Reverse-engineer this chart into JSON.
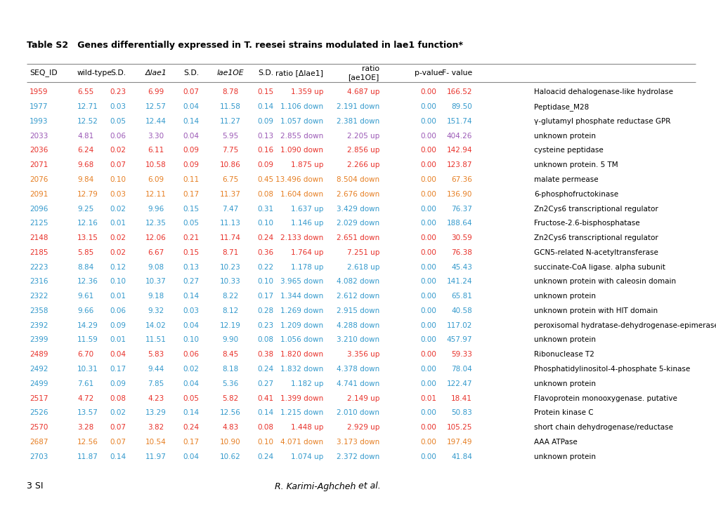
{
  "title": "Table S2   Genes differentially expressed in T. reesei strains modulated in lae1 function*",
  "footer_left": "3 SI",
  "footer_right": "R. Karimi-Aghcheh et al.",
  "rows": [
    {
      "seq": "1959",
      "wt": "6.55",
      "sd1": "0.23",
      "dlae": "6.99",
      "sd2": "0.07",
      "laeoe": "8.78",
      "sd3": "0.15",
      "ratio_d": "1.359 up",
      "ratio_o": "4.687 up",
      "pval": "0.00",
      "fval": "166.52",
      "desc": "Haloacid dehalogenase-like hydrolase",
      "color": "red"
    },
    {
      "seq": "1977",
      "wt": "12.71",
      "sd1": "0.03",
      "dlae": "12.57",
      "sd2": "0.04",
      "laeoe": "11.58",
      "sd3": "0.14",
      "ratio_d": "1.106 down",
      "ratio_o": "2.191 down",
      "pval": "0.00",
      "fval": "89.50",
      "desc": "Peptidase_M28",
      "color": "blue"
    },
    {
      "seq": "1993",
      "wt": "12.52",
      "sd1": "0.05",
      "dlae": "12.44",
      "sd2": "0.14",
      "laeoe": "11.27",
      "sd3": "0.09",
      "ratio_d": "1.057 down",
      "ratio_o": "2.381 down",
      "pval": "0.00",
      "fval": "151.74",
      "desc": "γ-glutamyl phosphate reductase GPR",
      "color": "blue"
    },
    {
      "seq": "2033",
      "wt": "4.81",
      "sd1": "0.06",
      "dlae": "3.30",
      "sd2": "0.04",
      "laeoe": "5.95",
      "sd3": "0.13",
      "ratio_d": "2.855 down",
      "ratio_o": "2.205 up",
      "pval": "0.00",
      "fval": "404.26",
      "desc": "unknown protein",
      "color": "purple"
    },
    {
      "seq": "2036",
      "wt": "6.24",
      "sd1": "0.02",
      "dlae": "6.11",
      "sd2": "0.09",
      "laeoe": "7.75",
      "sd3": "0.16",
      "ratio_d": "1.090 down",
      "ratio_o": "2.856 up",
      "pval": "0.00",
      "fval": "142.94",
      "desc": "cysteine peptidase",
      "color": "red"
    },
    {
      "seq": "2071",
      "wt": "9.68",
      "sd1": "0.07",
      "dlae": "10.58",
      "sd2": "0.09",
      "laeoe": "10.86",
      "sd3": "0.09",
      "ratio_d": "1.875 up",
      "ratio_o": "2.266 up",
      "pval": "0.00",
      "fval": "123.87",
      "desc": "unknown protein. 5 TM",
      "color": "red"
    },
    {
      "seq": "2076",
      "wt": "9.84",
      "sd1": "0.10",
      "dlae": "6.09",
      "sd2": "0.11",
      "laeoe": "6.75",
      "sd3": "0.45",
      "ratio_d": "13.496 down",
      "ratio_o": "8.504 down",
      "pval": "0.00",
      "fval": "67.36",
      "desc": "malate permease",
      "color": "orange"
    },
    {
      "seq": "2091",
      "wt": "12.79",
      "sd1": "0.03",
      "dlae": "12.11",
      "sd2": "0.17",
      "laeoe": "11.37",
      "sd3": "0.08",
      "ratio_d": "1.604 down",
      "ratio_o": "2.676 down",
      "pval": "0.00",
      "fval": "136.90",
      "desc": "6-phosphofructokinase",
      "color": "orange"
    },
    {
      "seq": "2096",
      "wt": "9.25",
      "sd1": "0.02",
      "dlae": "9.96",
      "sd2": "0.15",
      "laeoe": "7.47",
      "sd3": "0.31",
      "ratio_d": "1.637 up",
      "ratio_o": "3.429 down",
      "pval": "0.00",
      "fval": "76.37",
      "desc": "Zn2Cys6 transcriptional regulator",
      "color": "blue"
    },
    {
      "seq": "2125",
      "wt": "12.16",
      "sd1": "0.01",
      "dlae": "12.35",
      "sd2": "0.05",
      "laeoe": "11.13",
      "sd3": "0.10",
      "ratio_d": "1.146 up",
      "ratio_o": "2.029 down",
      "pval": "0.00",
      "fval": "188.64",
      "desc": "Fructose-2.6-bisphosphatase",
      "color": "blue"
    },
    {
      "seq": "2148",
      "wt": "13.15",
      "sd1": "0.02",
      "dlae": "12.06",
      "sd2": "0.21",
      "laeoe": "11.74",
      "sd3": "0.24",
      "ratio_d": "2.133 down",
      "ratio_o": "2.651 down",
      "pval": "0.00",
      "fval": "30.59",
      "desc": "Zn2Cys6 transcriptional regulator",
      "color": "red"
    },
    {
      "seq": "2185",
      "wt": "5.85",
      "sd1": "0.02",
      "dlae": "6.67",
      "sd2": "0.15",
      "laeoe": "8.71",
      "sd3": "0.36",
      "ratio_d": "1.764 up",
      "ratio_o": "7.251 up",
      "pval": "0.00",
      "fval": "76.38",
      "desc": "GCN5-related N-acetyltransferase",
      "color": "red"
    },
    {
      "seq": "2223",
      "wt": "8.84",
      "sd1": "0.12",
      "dlae": "9.08",
      "sd2": "0.13",
      "laeoe": "10.23",
      "sd3": "0.22",
      "ratio_d": "1.178 up",
      "ratio_o": "2.618 up",
      "pval": "0.00",
      "fval": "45.43",
      "desc": "succinate-CoA ligase. alpha subunit",
      "color": "blue"
    },
    {
      "seq": "2316",
      "wt": "12.36",
      "sd1": "0.10",
      "dlae": "10.37",
      "sd2": "0.27",
      "laeoe": "10.33",
      "sd3": "0.10",
      "ratio_d": "3.965 down",
      "ratio_o": "4.082 down",
      "pval": "0.00",
      "fval": "141.24",
      "desc": "unknown protein with caleosin domain",
      "color": "blue"
    },
    {
      "seq": "2322",
      "wt": "9.61",
      "sd1": "0.01",
      "dlae": "9.18",
      "sd2": "0.14",
      "laeoe": "8.22",
      "sd3": "0.17",
      "ratio_d": "1.344 down",
      "ratio_o": "2.612 down",
      "pval": "0.00",
      "fval": "65.81",
      "desc": "unknown protein",
      "color": "blue"
    },
    {
      "seq": "2358",
      "wt": "9.66",
      "sd1": "0.06",
      "dlae": "9.32",
      "sd2": "0.03",
      "laeoe": "8.12",
      "sd3": "0.28",
      "ratio_d": "1.269 down",
      "ratio_o": "2.915 down",
      "pval": "0.00",
      "fval": "40.58",
      "desc": "unknown protein with HIT domain",
      "color": "blue"
    },
    {
      "seq": "2392",
      "wt": "14.29",
      "sd1": "0.09",
      "dlae": "14.02",
      "sd2": "0.04",
      "laeoe": "12.19",
      "sd3": "0.23",
      "ratio_d": "1.209 down",
      "ratio_o": "4.288 down",
      "pval": "0.00",
      "fval": "117.02",
      "desc": "peroxisomal hydratase-dehydrogenase-epimerase",
      "color": "blue"
    },
    {
      "seq": "2399",
      "wt": "11.59",
      "sd1": "0.01",
      "dlae": "11.51",
      "sd2": "0.10",
      "laeoe": "9.90",
      "sd3": "0.08",
      "ratio_d": "1.056 down",
      "ratio_o": "3.210 down",
      "pval": "0.00",
      "fval": "457.97",
      "desc": "unknown protein",
      "color": "blue"
    },
    {
      "seq": "2489",
      "wt": "6.70",
      "sd1": "0.04",
      "dlae": "5.83",
      "sd2": "0.06",
      "laeoe": "8.45",
      "sd3": "0.38",
      "ratio_d": "1.820 down",
      "ratio_o": "3.356 up",
      "pval": "0.00",
      "fval": "59.33",
      "desc": "Ribonuclease T2",
      "color": "red"
    },
    {
      "seq": "2492",
      "wt": "10.31",
      "sd1": "0.17",
      "dlae": "9.44",
      "sd2": "0.02",
      "laeoe": "8.18",
      "sd3": "0.24",
      "ratio_d": "1.832 down",
      "ratio_o": "4.378 down",
      "pval": "0.00",
      "fval": "78.04",
      "desc": "Phosphatidylinositol-4-phosphate 5-kinase",
      "color": "blue"
    },
    {
      "seq": "2499",
      "wt": "7.61",
      "sd1": "0.09",
      "dlae": "7.85",
      "sd2": "0.04",
      "laeoe": "5.36",
      "sd3": "0.27",
      "ratio_d": "1.182 up",
      "ratio_o": "4.741 down",
      "pval": "0.00",
      "fval": "122.47",
      "desc": "unknown protein",
      "color": "blue"
    },
    {
      "seq": "2517",
      "wt": "4.72",
      "sd1": "0.08",
      "dlae": "4.23",
      "sd2": "0.05",
      "laeoe": "5.82",
      "sd3": "0.41",
      "ratio_d": "1.399 down",
      "ratio_o": "2.149 up",
      "pval": "0.01",
      "fval": "18.41",
      "desc": "Flavoprotein monooxygenase. putative",
      "color": "red"
    },
    {
      "seq": "2526",
      "wt": "13.57",
      "sd1": "0.02",
      "dlae": "13.29",
      "sd2": "0.14",
      "laeoe": "12.56",
      "sd3": "0.14",
      "ratio_d": "1.215 down",
      "ratio_o": "2.010 down",
      "pval": "0.00",
      "fval": "50.83",
      "desc": "Protein kinase C",
      "color": "blue"
    },
    {
      "seq": "2570",
      "wt": "3.28",
      "sd1": "0.07",
      "dlae": "3.82",
      "sd2": "0.24",
      "laeoe": "4.83",
      "sd3": "0.08",
      "ratio_d": "1.448 up",
      "ratio_o": "2.929 up",
      "pval": "0.00",
      "fval": "105.25",
      "desc": "short chain dehydrogenase/reductase",
      "color": "red"
    },
    {
      "seq": "2687",
      "wt": "12.56",
      "sd1": "0.07",
      "dlae": "10.54",
      "sd2": "0.17",
      "laeoe": "10.90",
      "sd3": "0.10",
      "ratio_d": "4.071 down",
      "ratio_o": "3.173 down",
      "pval": "0.00",
      "fval": "197.49",
      "desc": "AAA ATPase",
      "color": "orange"
    },
    {
      "seq": "2703",
      "wt": "11.87",
      "sd1": "0.14",
      "dlae": "11.97",
      "sd2": "0.04",
      "laeoe": "10.62",
      "sd3": "0.24",
      "ratio_d": "1.074 up",
      "ratio_o": "2.372 down",
      "pval": "0.00",
      "fval": "41.84",
      "desc": "unknown protein",
      "color": "blue"
    }
  ],
  "color_map": {
    "red": "#E8312A",
    "blue": "#3399CC",
    "orange": "#E67E22",
    "purple": "#9B59B6",
    "black": "#000000"
  },
  "bg_color": "#ffffff",
  "header_color": "#000000",
  "line_color": "#888888",
  "fontsize": 7.5,
  "header_fontsize": 7.8,
  "title_fontsize": 9.0
}
